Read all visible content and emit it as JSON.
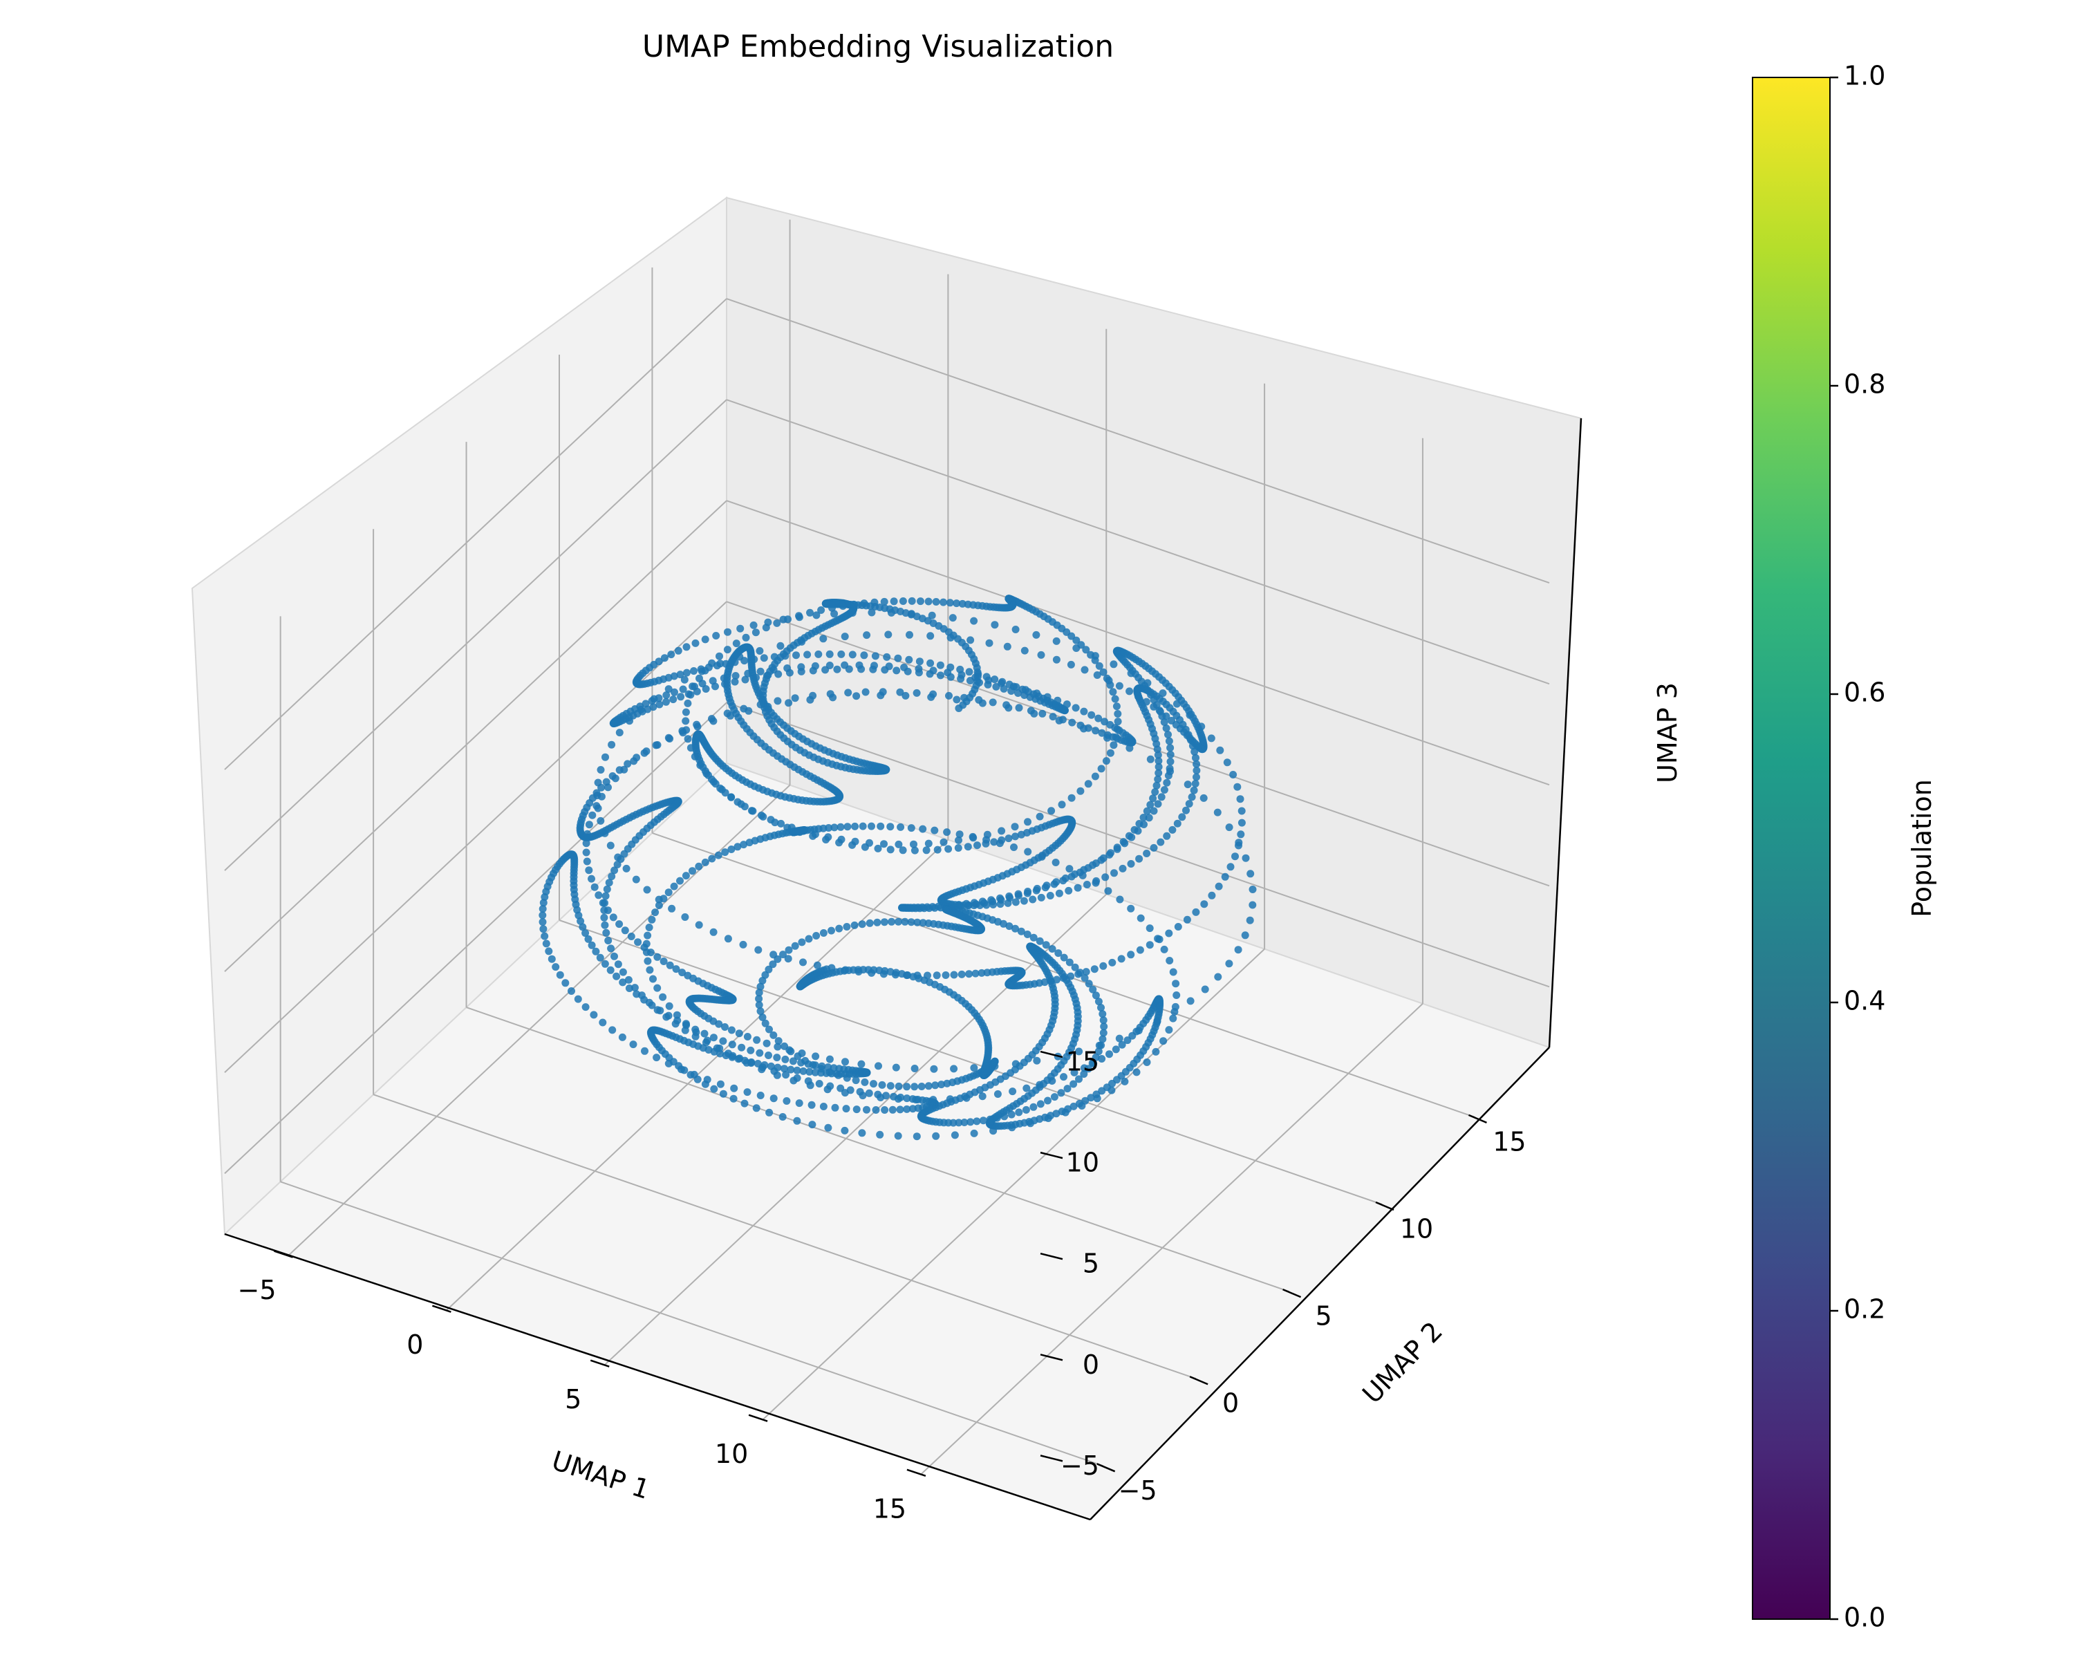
{
  "chart_data": {
    "type": "scatter",
    "projection": "3d",
    "title": "UMAP Embedding Visualization",
    "xlabel": "UMAP 1",
    "ylabel": "UMAP 2",
    "zlabel": "UMAP 3",
    "xlim": [
      -7,
      19
    ],
    "ylim": [
      -8,
      19
    ],
    "zlim": [
      -8,
      20
    ],
    "xticks": [
      -5,
      0,
      5,
      10,
      15
    ],
    "yticks": [
      -5,
      0,
      5,
      10,
      15
    ],
    "zticks": [
      -5,
      0,
      5,
      10,
      15
    ],
    "grid": true,
    "marker_color": "#1f77b4",
    "trajectory": {
      "description": "continuous coiled curve of points (spherical shell embedding)",
      "n_points": 2600,
      "center": [
        6,
        5.5,
        6
      ],
      "radius": 9.5,
      "turns": 60
    },
    "colorbar": {
      "label": "Population",
      "cmap": "viridis",
      "min": 0.0,
      "max": 1.0,
      "ticks": [
        "0.0",
        "0.2",
        "0.4",
        "0.6",
        "0.8",
        "1.0"
      ],
      "stops": [
        "#440154",
        "#482878",
        "#3e4989",
        "#31688e",
        "#26828e",
        "#1f9e89",
        "#35b779",
        "#6ece58",
        "#b5de2b",
        "#fde725"
      ]
    }
  }
}
